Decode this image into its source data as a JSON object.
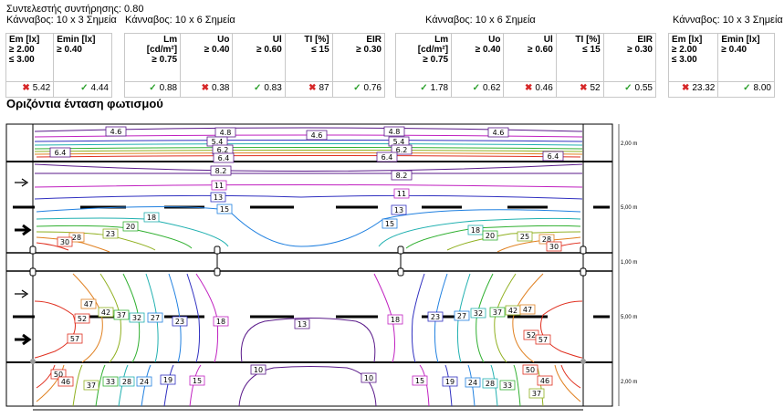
{
  "header": {
    "maintenance_factor": "Συντελεστής συντήρησης: 0.80",
    "grid_left": "Κάνναβος: 10 x 3 Σημεία",
    "grid_road1": "Κάνναβος: 10 x 6 Σημεία",
    "grid_road2": "Κάνναβος: 10 x 6 Σημεία",
    "grid_right": "Κάνναβος: 10 x 3 Σημεία"
  },
  "tables": {
    "left": {
      "heads": [
        [
          "Em [lx]",
          "≥ 2.00",
          "≤ 3.00"
        ],
        [
          "Emin [lx]",
          "≥ 0.40"
        ]
      ],
      "values": [
        {
          "v": "5.42",
          "ok": false
        },
        {
          "v": "4.44",
          "ok": true
        }
      ]
    },
    "road1": {
      "heads": [
        [
          "Lm",
          "[cd/m²]",
          "≥ 0.75"
        ],
        [
          "Uo",
          "≥ 0.40"
        ],
        [
          "Ul",
          "≥ 0.60"
        ],
        [
          "TI [%]",
          "≤ 15"
        ],
        [
          "EIR",
          "≥ 0.30"
        ]
      ],
      "values": [
        {
          "v": "0.88",
          "ok": true
        },
        {
          "v": "0.38",
          "ok": false
        },
        {
          "v": "0.83",
          "ok": true
        },
        {
          "v": "87",
          "ok": false
        },
        {
          "v": "0.76",
          "ok": true
        }
      ]
    },
    "road2": {
      "heads": [
        [
          "Lm",
          "[cd/m²]",
          "≥ 0.75"
        ],
        [
          "Uo",
          "≥ 0.40"
        ],
        [
          "Ul",
          "≥ 0.60"
        ],
        [
          "TI [%]",
          "≤ 15"
        ],
        [
          "EIR",
          "≥ 0.30"
        ]
      ],
      "values": [
        {
          "v": "1.78",
          "ok": true
        },
        {
          "v": "0.62",
          "ok": true
        },
        {
          "v": "0.46",
          "ok": false
        },
        {
          "v": "52",
          "ok": false
        },
        {
          "v": "0.55",
          "ok": true
        }
      ]
    },
    "right": {
      "heads": [
        [
          "Em [lx]",
          "≥ 2.00",
          "≤ 3.00"
        ],
        [
          "Emin [lx]",
          "≥ 0.40"
        ]
      ],
      "values": [
        {
          "v": "23.32",
          "ok": false
        },
        {
          "v": "8.00",
          "ok": true
        }
      ]
    }
  },
  "section_title": "Οριζόντια ένταση φωτισμού",
  "dims": [
    "2,00 m",
    "5,00 m",
    "1,00 m",
    "5,00 m",
    "2,00 m"
  ],
  "contours": {
    "labels": [
      {
        "t": "4.6",
        "c": "#5a1a8a"
      },
      {
        "t": "4.6",
        "c": "#5a1a8a"
      },
      {
        "t": "4.8",
        "c": "#5a1a8a"
      },
      {
        "t": "4.8",
        "c": "#5a1a8a"
      },
      {
        "t": "4.6",
        "c": "#5a1a8a"
      },
      {
        "t": "5.4",
        "c": "#5a1a8a"
      },
      {
        "t": "5.4",
        "c": "#5a1a8a"
      },
      {
        "t": "6.2",
        "c": "#5a1a8a"
      },
      {
        "t": "6.2",
        "c": "#5a1a8a"
      },
      {
        "t": "6.4",
        "c": "#5a1a8a"
      },
      {
        "t": "6.4",
        "c": "#5a1a8a"
      },
      {
        "t": "6.4",
        "c": "#5a1a8a"
      },
      {
        "t": "6.4",
        "c": "#5a1a8a"
      },
      {
        "t": "8.2",
        "c": "#5a1a8a"
      },
      {
        "t": "8.2",
        "c": "#5a1a8a"
      },
      {
        "t": "11",
        "c": "#c020c0"
      },
      {
        "t": "11",
        "c": "#c020c0"
      },
      {
        "t": "13",
        "c": "#3030c0"
      },
      {
        "t": "13",
        "c": "#3030c0"
      },
      {
        "t": "15",
        "c": "#2080e0"
      },
      {
        "t": "15",
        "c": "#2080e0"
      },
      {
        "t": "18",
        "c": "#20b0b0"
      },
      {
        "t": "18",
        "c": "#20b0b0"
      },
      {
        "t": "20",
        "c": "#30b030"
      },
      {
        "t": "20",
        "c": "#30b030"
      },
      {
        "t": "23",
        "c": "#90b020"
      },
      {
        "t": "25",
        "c": "#90b020"
      },
      {
        "t": "28",
        "c": "#e08020"
      },
      {
        "t": "28",
        "c": "#e08020"
      },
      {
        "t": "30",
        "c": "#e03020"
      },
      {
        "t": "30",
        "c": "#e03020"
      },
      {
        "t": "47",
        "c": "#e08020"
      },
      {
        "t": "42",
        "c": "#90b020"
      },
      {
        "t": "37",
        "c": "#30b030"
      },
      {
        "t": "32",
        "c": "#20b0b0"
      },
      {
        "t": "27",
        "c": "#2080e0"
      },
      {
        "t": "23",
        "c": "#3030c0"
      },
      {
        "t": "18",
        "c": "#c020c0"
      },
      {
        "t": "13",
        "c": "#5a1a8a"
      },
      {
        "t": "18",
        "c": "#c020c0"
      },
      {
        "t": "23",
        "c": "#3030c0"
      },
      {
        "t": "27",
        "c": "#2080e0"
      },
      {
        "t": "32",
        "c": "#20b0b0"
      },
      {
        "t": "37",
        "c": "#30b030"
      },
      {
        "t": "42",
        "c": "#90b020"
      },
      {
        "t": "47",
        "c": "#e08020"
      },
      {
        "t": "52",
        "c": "#e03020"
      },
      {
        "t": "52",
        "c": "#e03020"
      },
      {
        "t": "57",
        "c": "#e03020"
      },
      {
        "t": "57",
        "c": "#e03020"
      },
      {
        "t": "50",
        "c": "#e03020"
      },
      {
        "t": "46",
        "c": "#e03020"
      },
      {
        "t": "37",
        "c": "#90b020"
      },
      {
        "t": "33",
        "c": "#30b030"
      },
      {
        "t": "28",
        "c": "#20b0b0"
      },
      {
        "t": "24",
        "c": "#2080e0"
      },
      {
        "t": "19",
        "c": "#3030c0"
      },
      {
        "t": "15",
        "c": "#c020c0"
      },
      {
        "t": "10",
        "c": "#5a1a8a"
      },
      {
        "t": "10",
        "c": "#5a1a8a"
      },
      {
        "t": "15",
        "c": "#c020c0"
      },
      {
        "t": "19",
        "c": "#3030c0"
      },
      {
        "t": "24",
        "c": "#2080e0"
      },
      {
        "t": "28",
        "c": "#20b0b0"
      },
      {
        "t": "33",
        "c": "#30b030"
      },
      {
        "t": "37",
        "c": "#90b020"
      },
      {
        "t": "50",
        "c": "#e03020"
      },
      {
        "t": "46",
        "c": "#e03020"
      }
    ]
  }
}
